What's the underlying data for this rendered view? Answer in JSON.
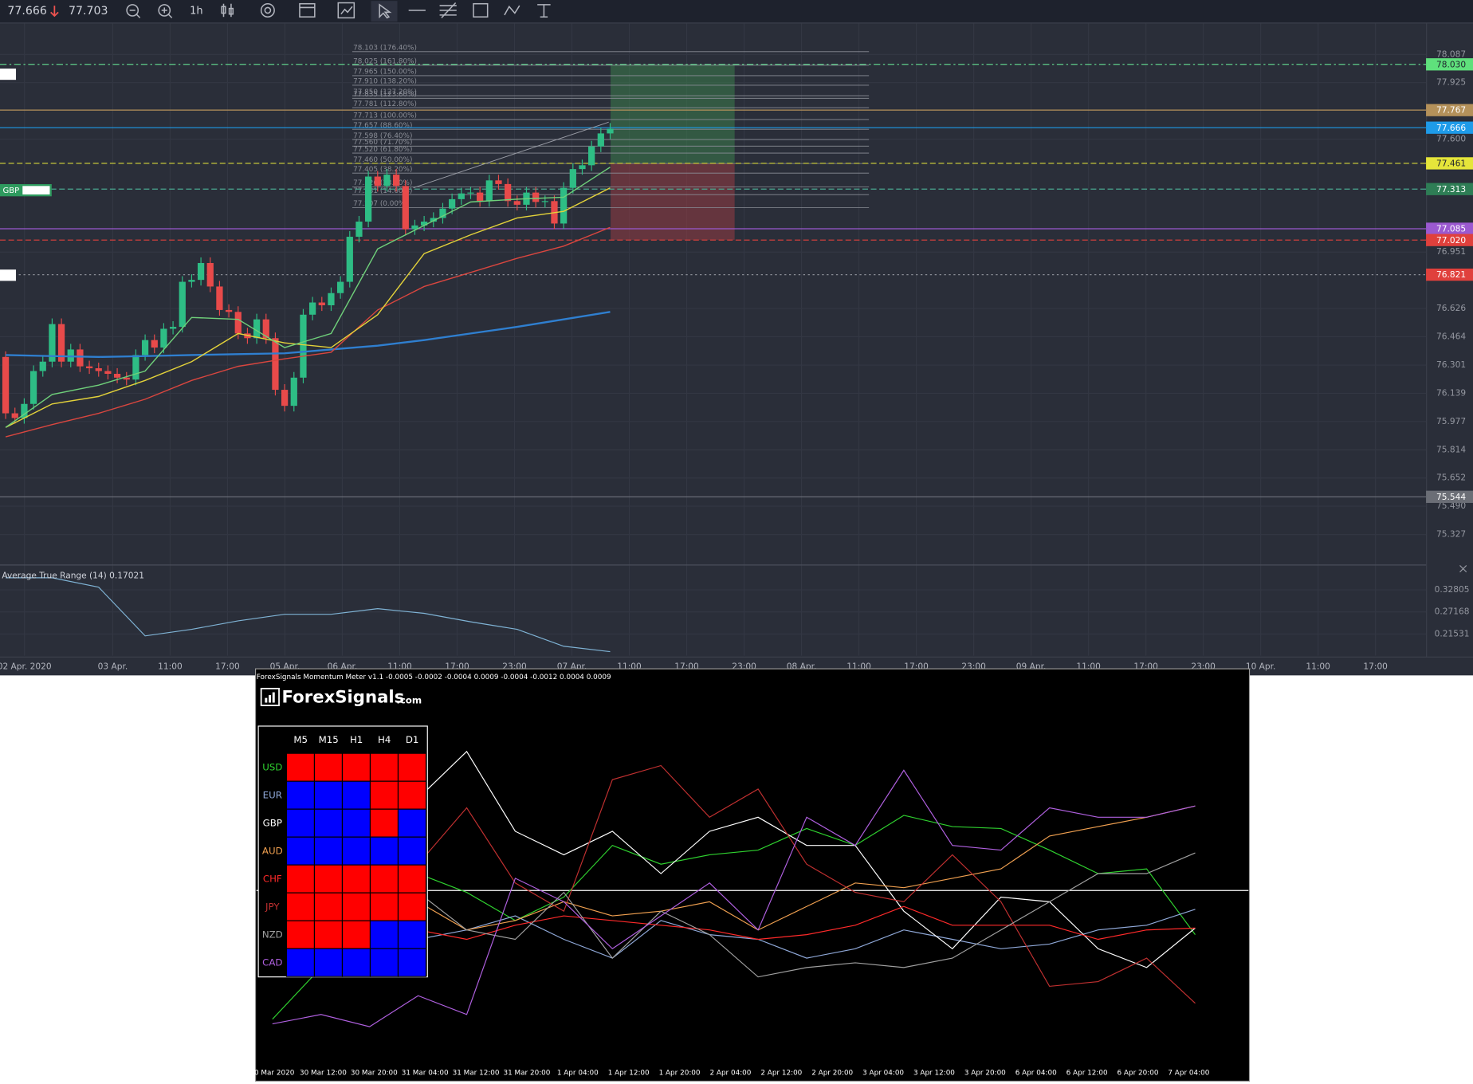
{
  "toolbar": {
    "last_price": "77.666",
    "change_price": "77.703",
    "interval": "1h"
  },
  "chart": {
    "ylim": [
      75.16,
      78.265
    ],
    "yticks": [
      78.087,
      77.925,
      {
        "value": 77.6,
        "label": "77.600"
      },
      76.951,
      76.626,
      76.464,
      76.301,
      76.139,
      75.977,
      75.814,
      75.652,
      {
        "value": 75.49,
        "label": "75.490"
      },
      75.327
    ],
    "price_lines": [
      {
        "value": 78.03,
        "label": "78.030",
        "color": "#5fe07c",
        "line_color": "#5fcf8a",
        "text_color": "#1e222d",
        "style": "dashdot"
      },
      {
        "value": 77.767,
        "label": "77.767",
        "color": "#b4915a",
        "line_color": "#b4915a",
        "text_color": "#ffffff",
        "style": "solid"
      },
      {
        "value": 77.666,
        "label": "77.666",
        "color": "#1e9be9",
        "line_color": "#1e9be9",
        "text_color": "#ffffff",
        "style": "solid"
      },
      {
        "value": 77.461,
        "label": "77.461",
        "color": "#e5e53a",
        "line_color": "#d8d83a",
        "text_color": "#1e222d",
        "style": "dashed"
      },
      {
        "value": 77.313,
        "label": "77.313",
        "color": "#2e7d55",
        "line_color": "#4aa890",
        "text_color": "#ffffff",
        "style": "dashed"
      },
      {
        "value": 77.085,
        "label": "77.085",
        "color": "#9b59d0",
        "line_color": "#9b59d0",
        "text_color": "#ffffff",
        "style": "solid"
      },
      {
        "value": 77.02,
        "label": "77.020",
        "color": "#e0403c",
        "line_color": "#e0403c",
        "text_color": "#ffffff",
        "style": "dashed"
      },
      {
        "value": 76.821,
        "label": "76.821",
        "color": "#e0403c",
        "line_color": "#8a8d96",
        "text_color": "#ffffff",
        "style": "dotted"
      },
      {
        "value": 75.544,
        "label": "75.544",
        "color": "#6b6e76",
        "line_color": "#70737c",
        "text_color": "#ffffff",
        "style": "solid"
      }
    ],
    "left_labels": [
      "GBP"
    ],
    "position": {
      "target": 78.03,
      "entry": 77.461,
      "stop": 77.02,
      "profit_color": "#3f8f4f",
      "loss_color": "#a03c44"
    },
    "fib": {
      "color": "#8a8d96",
      "levels": [
        {
          "value": 78.103,
          "label": "78.103 (176.40%)"
        },
        {
          "value": 78.025,
          "label": "78.025 (161.80%)"
        },
        {
          "value": 77.965,
          "label": "77.965 (150.00%)"
        },
        {
          "value": 77.91,
          "label": "77.910 (138.20%)"
        },
        {
          "value": 77.85,
          "label": "77.850 (127.20%)"
        },
        {
          "value": 77.835,
          "label": "77.835 (123.60%)"
        },
        {
          "value": 77.781,
          "label": "77.781 (112.80%)"
        },
        {
          "value": 77.713,
          "label": "77.713 (100.00%)"
        },
        {
          "value": 77.657,
          "label": "77.657 (88.60%)"
        },
        {
          "value": 77.598,
          "label": "77.598 (76.40%)"
        },
        {
          "value": 77.56,
          "label": "77.560 (71.70%)"
        },
        {
          "value": 77.52,
          "label": "77.520 (61.80%)"
        },
        {
          "value": 77.46,
          "label": "77.460 (50.00%)"
        },
        {
          "value": 77.405,
          "label": "77.405 (38.20%)"
        },
        {
          "value": 77.326,
          "label": "77.326 (23.60%)"
        },
        {
          "value": 77.281,
          "label": "77.281 (14.60%)"
        },
        {
          "value": 77.207,
          "label": "77.207 (0.00%)"
        }
      ]
    },
    "candles": {
      "up_color": "#2ebd85",
      "down_color": "#e84a4a",
      "prices": [
        76.348,
        76.024,
        75.997,
        76.078,
        76.267,
        76.321,
        76.537,
        76.321,
        76.391,
        76.294,
        76.283,
        76.267,
        76.251,
        76.229,
        76.218,
        76.359,
        76.445,
        76.402,
        76.51,
        76.521,
        76.78,
        76.791,
        76.888,
        76.753,
        76.618,
        76.607,
        76.483,
        76.456,
        76.564,
        76.456,
        76.159,
        76.067,
        76.229,
        76.591,
        76.661,
        76.645,
        76.715,
        76.78,
        77.039,
        77.126,
        77.385,
        77.331,
        77.396,
        77.331,
        77.082,
        77.104,
        77.126,
        77.147,
        77.201,
        77.255,
        77.288,
        77.293,
        77.244,
        77.363,
        77.342,
        77.244,
        77.223,
        77.293,
        77.239,
        77.244,
        77.115,
        77.32,
        77.428,
        77.45,
        77.558,
        77.633,
        77.66
      ]
    },
    "moving_averages": {
      "x": [
        0,
        5,
        10,
        15,
        20,
        25,
        30,
        35,
        40,
        45,
        50,
        55,
        60,
        65
      ],
      "series": [
        {
          "color": "#2f7fd0",
          "values": [
            76.359,
            76.353,
            76.348,
            76.353,
            76.359,
            76.364,
            76.369,
            76.391,
            76.413,
            76.445,
            76.483,
            76.521,
            76.564,
            76.607
          ]
        },
        {
          "color": "#d9463f",
          "values": [
            75.889,
            75.959,
            76.024,
            76.105,
            76.213,
            76.294,
            76.337,
            76.375,
            76.618,
            76.753,
            76.834,
            76.915,
            76.985,
            77.093
          ]
        },
        {
          "color": "#e3d23a",
          "values": [
            75.943,
            76.078,
            76.121,
            76.213,
            76.321,
            76.483,
            76.429,
            76.402,
            76.591,
            76.942,
            77.05,
            77.147,
            77.185,
            77.32
          ]
        },
        {
          "color": "#6fd07a",
          "values": [
            75.943,
            76.132,
            76.186,
            76.267,
            76.575,
            76.564,
            76.402,
            76.483,
            76.969,
            77.104,
            77.239,
            77.255,
            77.266,
            77.439
          ]
        }
      ]
    },
    "time_labels": [
      "02 Apr. 2020",
      "03 Apr.",
      "11:00",
      "17:00",
      "05 Apr.",
      "06 Apr.",
      "11:00",
      "17:00",
      "23:00",
      "07 Apr.",
      "11:00",
      "17:00",
      "23:00",
      "08 Apr.",
      "11:00",
      "17:00",
      "23:00",
      "09 Apr.",
      "11:00",
      "17:00",
      "23:00",
      "10 Apr.",
      "11:00",
      "17:00"
    ]
  },
  "atr": {
    "label": "Average True Range (14) 0.17021",
    "ylim": [
      0.16,
      0.388
    ],
    "yticks": [
      0.32805,
      0.27168,
      0.21531
    ],
    "color": "#7fb3d5",
    "x": [
      0,
      5,
      10,
      15,
      20,
      25,
      30,
      35,
      40,
      45,
      50,
      55,
      60,
      65
    ],
    "values": [
      0.359,
      0.359,
      0.335,
      0.2105,
      0.2273,
      0.2489,
      0.2657,
      0.2657,
      0.2801,
      0.2681,
      0.2465,
      0.2273,
      0.1841,
      0.17021
    ]
  },
  "momentum": {
    "title": "ForexSignals Momentum Meter v1.1 -0.0005 -0.0002 -0.0004 0.0009 -0.0004 -0.0012 0.0004 0.0009",
    "logo_name": "ForexSignals",
    "logo_suffix": ".com",
    "ylim": [
      -0.0018,
      0.0022
    ],
    "columns": [
      "M5",
      "M15",
      "H1",
      "H4",
      "D1"
    ],
    "rows": [
      {
        "name": "USD",
        "color": "#2fd12f",
        "cells": [
          "#ff0000",
          "#ff0000",
          "#ff0000",
          "#ff0000",
          "#ff0000"
        ],
        "values": [
          -0.00137,
          -0.00082,
          -0.00032,
          0.00018,
          -2e-05,
          -0.00032,
          -7e-05,
          0.00048,
          0.00028,
          0.00038,
          0.00043,
          0.00066,
          0.00048,
          0.0008,
          0.00068,
          0.00066,
          0.00043,
          0.00018,
          0.00023,
          -0.00047
        ]
      },
      {
        "name": "EUR",
        "color": "#8fa8d8",
        "cells": [
          "#0000ff",
          "#0000ff",
          "#0000ff",
          "#ff0000",
          "#ff0000"
        ],
        "values": [
          -0.00012,
          -0.00022,
          -0.00042,
          -0.00052,
          -0.00042,
          -0.00027,
          -0.00052,
          -0.00072,
          -0.00032,
          -0.00047,
          -0.00052,
          -0.00072,
          -0.00062,
          -0.00042,
          -0.00052,
          -0.00062,
          -0.00057,
          -0.00042,
          -0.00037,
          -0.0002
        ]
      },
      {
        "name": "GBP",
        "color": "#ffffff",
        "cells": [
          "#0000ff",
          "#0000ff",
          "#0000ff",
          "#ff0000",
          "#0000ff"
        ],
        "values": [
          0.00048,
          0.00078,
          0.00088,
          0.00098,
          0.00148,
          0.00063,
          0.00038,
          0.00063,
          0.00018,
          0.00063,
          0.00078,
          0.00048,
          0.00048,
          -0.00022,
          -0.00062,
          -7e-05,
          -0.00012,
          -0.00062,
          -0.00082,
          -0.0004
        ]
      },
      {
        "name": "AUD",
        "color": "#f0a050",
        "cells": [
          "#0000ff",
          "#0000ff",
          "#0000ff",
          "#0000ff",
          "#0000ff"
        ],
        "values": [
          -0.00032,
          -0.00042,
          -0.00032,
          -0.00012,
          -0.00042,
          -0.00032,
          -0.00012,
          -0.00027,
          -0.00022,
          -0.00012,
          -0.00042,
          -0.00017,
          8e-05,
          3e-05,
          0.00013,
          0.00023,
          0.00058,
          0.00068,
          0.00078,
          0.0009
        ]
      },
      {
        "name": "CHF",
        "color": "#ff2a2a",
        "cells": [
          "#ff0000",
          "#ff0000",
          "#ff0000",
          "#ff0000",
          "#ff0000"
        ],
        "values": [
          -0.00042,
          -0.00052,
          -0.00052,
          -0.00042,
          -0.00052,
          -0.00037,
          -0.00027,
          -0.00032,
          -0.00037,
          -0.00042,
          -0.00052,
          -0.00047,
          -0.00037,
          -0.00017,
          -0.00037,
          -0.00037,
          -0.00037,
          -0.00052,
          -0.00042,
          -0.0004
        ]
      },
      {
        "name": "JPY",
        "color": "#c03030",
        "cells": [
          "#ff0000",
          "#ff0000",
          "#ff0000",
          "#ff0000",
          "#ff0000"
        ],
        "values": [
          0.00018,
          0.00048,
          0.00068,
          0.00028,
          0.00088,
          8e-05,
          -0.00022,
          0.00118,
          0.00133,
          0.00078,
          0.00108,
          0.00028,
          -2e-05,
          -0.00012,
          0.00038,
          -0.00012,
          -0.00102,
          -0.00097,
          -0.00072,
          -0.0012
        ]
      },
      {
        "name": "NZD",
        "color": "#a0a0a0",
        "cells": [
          "#ff0000",
          "#ff0000",
          "#ff0000",
          "#0000ff",
          "#0000ff"
        ],
        "values": [
          -0.00022,
          -0.00032,
          -0.00027,
          -2e-05,
          -0.00042,
          -0.00052,
          -2e-05,
          -0.00072,
          -0.00022,
          -0.00047,
          -0.00092,
          -0.00082,
          -0.00077,
          -0.00082,
          -0.00072,
          -0.00042,
          -0.00012,
          0.00018,
          0.00018,
          0.0004
        ]
      },
      {
        "name": "CAD",
        "color": "#b060e0",
        "cells": [
          "#0000ff",
          "#0000ff",
          "#0000ff",
          "#0000ff",
          "#0000ff"
        ],
        "values": [
          -0.00142,
          -0.00132,
          -0.00145,
          -0.00112,
          -0.00132,
          0.00013,
          -0.00012,
          -0.00062,
          -0.00027,
          8e-05,
          -0.00042,
          0.00078,
          0.00048,
          0.00128,
          0.00048,
          0.00043,
          0.00088,
          0.00078,
          0.00078,
          0.0009
        ]
      }
    ],
    "x_labels": [
      "0 Mar 2020",
      "30 Mar 12:00",
      "30 Mar 20:00",
      "31 Mar 04:00",
      "31 Mar 12:00",
      "31 Mar 20:00",
      "1 Apr 04:00",
      "1 Apr 12:00",
      "1 Apr 20:00",
      "2 Apr 04:00",
      "2 Apr 12:00",
      "2 Apr 20:00",
      "3 Apr 04:00",
      "3 Apr 12:00",
      "3 Apr 20:00",
      "6 Apr 04:00",
      "6 Apr 12:00",
      "6 Apr 20:00",
      "7 Apr 04:00"
    ]
  }
}
